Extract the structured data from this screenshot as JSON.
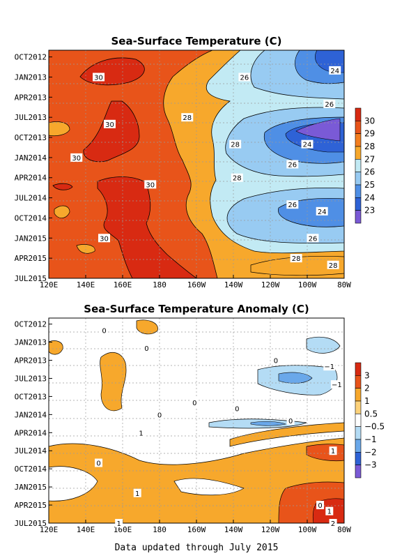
{
  "footer": "Data updated through July 2015",
  "chart_data": [
    {
      "type": "heatmap",
      "title": "Sea-Surface Temperature (C)",
      "x_ticks": [
        "120E",
        "140E",
        "160E",
        "180",
        "160W",
        "140W",
        "120W",
        "100W",
        "80W"
      ],
      "y_ticks": [
        "OCT2012",
        "JAN2013",
        "APR2013",
        "JUL2013",
        "OCT2013",
        "JAN2014",
        "APR2014",
        "JUL2014",
        "OCT2014",
        "JAN2015",
        "APR2015",
        "JUL2015"
      ],
      "colorbar": {
        "ticks": [
          "30",
          "29",
          "28",
          "27",
          "26",
          "25",
          "24",
          "23"
        ],
        "colors": [
          "#d82a12",
          "#e8541a",
          "#f37e1f",
          "#f7a82c",
          "#c2eaf4",
          "#98cbf2",
          "#4f8fe5",
          "#2e62d6",
          "#7a5ad6"
        ]
      },
      "contour_labels": [
        {
          "text": "30",
          "lon": 147,
          "date": "2013-01"
        },
        {
          "text": "30",
          "lon": 153,
          "date": "2013-08"
        },
        {
          "text": "30",
          "lon": 135,
          "date": "2014-01"
        },
        {
          "text": "30",
          "lon": 175,
          "date": "2014-05"
        },
        {
          "text": "30",
          "lon": 150,
          "date": "2015-01"
        },
        {
          "text": "28",
          "lon": 195,
          "date": "2013-07"
        },
        {
          "text": "28",
          "lon": 222,
          "date": "2014-04"
        },
        {
          "text": "28",
          "lon": 221,
          "date": "2013-11"
        },
        {
          "text": "28",
          "lon": 254,
          "date": "2015-04"
        },
        {
          "text": "28",
          "lon": 274,
          "date": "2015-05"
        },
        {
          "text": "26",
          "lon": 226,
          "date": "2013-01"
        },
        {
          "text": "26",
          "lon": 272,
          "date": "2013-05"
        },
        {
          "text": "26",
          "lon": 252,
          "date": "2014-02"
        },
        {
          "text": "26",
          "lon": 252,
          "date": "2014-08"
        },
        {
          "text": "26",
          "lon": 263,
          "date": "2015-01"
        },
        {
          "text": "24",
          "lon": 275,
          "date": "2012-12"
        },
        {
          "text": "24",
          "lon": 260,
          "date": "2013-11"
        },
        {
          "text": "24",
          "lon": 268,
          "date": "2014-09"
        }
      ]
    },
    {
      "type": "heatmap",
      "title": "Sea-Surface Temperature Anomaly (C)",
      "x_ticks": [
        "120E",
        "140E",
        "160E",
        "180",
        "160W",
        "140W",
        "120W",
        "100W",
        "80W"
      ],
      "y_ticks": [
        "OCT2012",
        "JAN2013",
        "APR2013",
        "JUL2013",
        "OCT2013",
        "JAN2014",
        "APR2014",
        "JUL2014",
        "OCT2014",
        "JAN2015",
        "APR2015",
        "JUL2015"
      ],
      "colorbar": {
        "ticks": [
          "3",
          "2",
          "1",
          "0.5",
          "−0.5",
          "−1",
          "−2",
          "−3"
        ],
        "colors": [
          "#d82a12",
          "#e8541a",
          "#f7a82c",
          "#fdd27a",
          "#ffffff",
          "#b4dcf5",
          "#6aa8ea",
          "#2e62d6",
          "#7a5ad6"
        ]
      },
      "contour_labels": [
        {
          "text": "0",
          "lon": 150,
          "date": "2012-11"
        },
        {
          "text": "0",
          "lon": 173,
          "date": "2013-02"
        },
        {
          "text": "0",
          "lon": 243,
          "date": "2013-04"
        },
        {
          "text": "−1",
          "lon": 272,
          "date": "2013-05"
        },
        {
          "text": "−1",
          "lon": 276,
          "date": "2013-08"
        },
        {
          "text": "0",
          "lon": 199,
          "date": "2013-11"
        },
        {
          "text": "0",
          "lon": 180,
          "date": "2014-01"
        },
        {
          "text": "0",
          "lon": 222,
          "date": "2013-12"
        },
        {
          "text": "0",
          "lon": 251,
          "date": "2014-02"
        },
        {
          "text": "1",
          "lon": 170,
          "date": "2014-04"
        },
        {
          "text": "1",
          "lon": 274,
          "date": "2014-07"
        },
        {
          "text": "0",
          "lon": 147,
          "date": "2014-09"
        },
        {
          "text": "1",
          "lon": 168,
          "date": "2015-02"
        },
        {
          "text": "0",
          "lon": 267,
          "date": "2015-04"
        },
        {
          "text": "1",
          "lon": 272,
          "date": "2015-05"
        },
        {
          "text": "2",
          "lon": 274,
          "date": "2015-07"
        },
        {
          "text": "1",
          "lon": 158,
          "date": "2015-07"
        }
      ]
    }
  ]
}
